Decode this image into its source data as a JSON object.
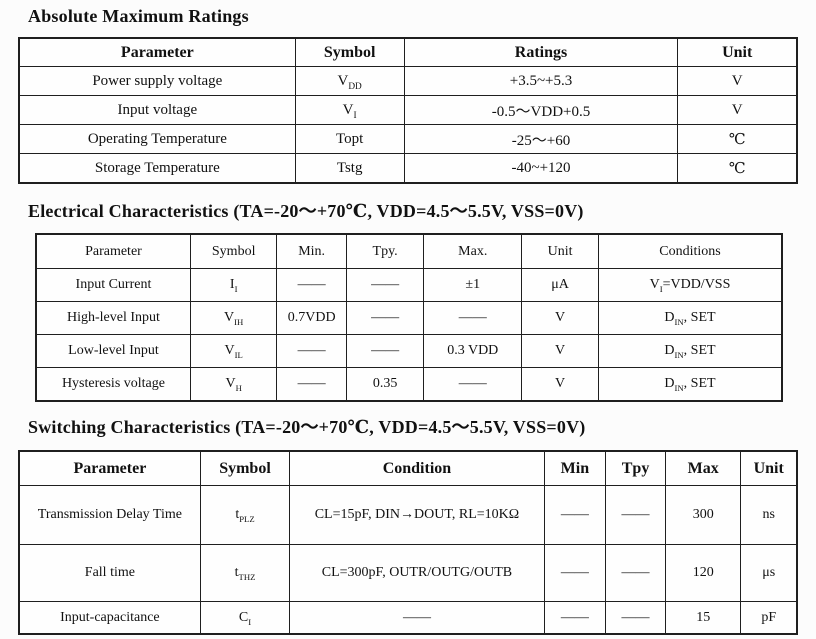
{
  "colors": {
    "text": "#111111",
    "border": "#1f1f1f",
    "background": "#fcfcfc"
  },
  "sections": [
    {
      "title": "Absolute Maximum Ratings",
      "table": {
        "headers": [
          "Parameter",
          "Symbol",
          "Ratings",
          "Unit"
        ],
        "rows": [
          [
            "Power supply voltage",
            "V_{DD}",
            "+3.5~+5.3",
            "V"
          ],
          [
            "Input voltage",
            "V_{I}",
            "-0.5～VDD+0.5",
            "V"
          ],
          [
            "Operating Temperature",
            "Topt",
            "-25～+60",
            "℃"
          ],
          [
            "Storage Temperature",
            "Tstg",
            "-40~+120",
            "℃"
          ]
        ]
      }
    },
    {
      "title": "Electrical Characteristics (TA=-20～+70℃, VDD=4.5～5.5V, VSS=0V)",
      "table": {
        "headers": [
          "Parameter",
          "Symbol",
          "Min.",
          "Tpy.",
          "Max.",
          "Unit",
          "Conditions"
        ],
        "rows": [
          [
            "Input Current",
            "I_{I}",
            "——",
            "——",
            "±1",
            "μA",
            "V_{I}=VDD/VSS"
          ],
          [
            "High-level Input",
            "V_{IH}",
            "0.7VDD",
            "——",
            "——",
            "V",
            "D_{IN}, SET"
          ],
          [
            "Low-level Input",
            "V_{IL}",
            "——",
            "——",
            "0.3 VDD",
            "V",
            "D_{IN}, SET"
          ],
          [
            "Hysteresis voltage",
            "V_{H}",
            "——",
            "0.35",
            "——",
            "V",
            "D_{IN}, SET"
          ]
        ]
      }
    },
    {
      "title": "Switching Characteristics (TA=-20～+70℃, VDD=4.5～5.5V, VSS=0V)",
      "table": {
        "headers": [
          "Parameter",
          "Symbol",
          "Condition",
          "Min",
          "Tpy",
          "Max",
          "Unit"
        ],
        "rows": [
          [
            "Transmission Delay Time",
            "t_{PLZ}",
            "CL=15pF, DIN→DOUT, RL=10KΩ",
            "——",
            "——",
            "300",
            "ns"
          ],
          [
            "Fall time",
            "t_{THZ}",
            "CL=300pF, OUTR/OUTG/OUTB",
            "——",
            "——",
            "120",
            "μs"
          ],
          [
            "Input-capacitance",
            "C_{I}",
            "——",
            "——",
            "——",
            "15",
            "pF"
          ]
        ]
      }
    }
  ]
}
